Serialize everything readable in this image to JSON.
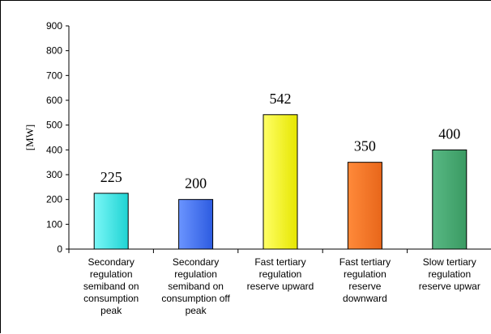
{
  "chart_data": {
    "type": "bar",
    "title": "",
    "xlabel": "",
    "ylabel": "[MW]",
    "ylim": [
      0,
      900
    ],
    "yticks": [
      0,
      100,
      200,
      300,
      400,
      500,
      600,
      700,
      800,
      900
    ],
    "grid": false,
    "legend": "none",
    "categories": [
      [
        "Secondary",
        "regulation",
        "semiband on",
        "consumption",
        "peak"
      ],
      [
        "Secondary",
        "regulation",
        "semiband on",
        "consumption off",
        "peak"
      ],
      [
        "Fast tertiary",
        "regulation",
        "reserve upward"
      ],
      [
        "Fast tertiary",
        "regulation",
        "reserve",
        "downward"
      ],
      [
        "Slow tertiary",
        "regulation",
        "reserve upwar"
      ]
    ],
    "values": [
      225,
      200,
      542,
      350,
      400
    ],
    "data_labels": [
      "225",
      "200",
      "542",
      "350",
      "400"
    ],
    "colors": [
      "#1fd3d3",
      "#2d5be0",
      "#e6e600",
      "#e8661a",
      "#3a9a62"
    ],
    "color_ends": [
      "#7af7f7",
      "#6a94ff",
      "#ffff66",
      "#ff8a3a",
      "#58b884"
    ]
  }
}
